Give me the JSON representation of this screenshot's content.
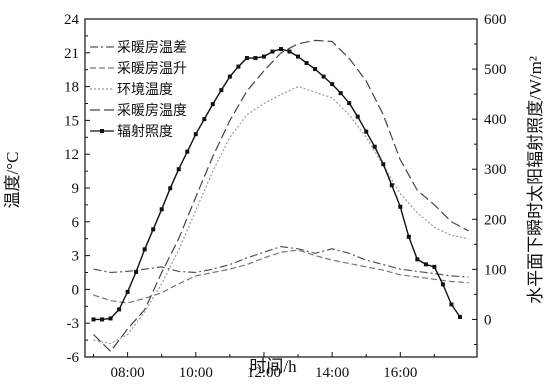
{
  "chart_data": {
    "type": "line",
    "title": "",
    "xlabel": "时间/h",
    "ylabel": "温度/°C",
    "y2label": "水平面下瞬时太阳辐射照度/W/m²",
    "xlim": [
      6.75,
      18.25
    ],
    "ylim": [
      -6,
      24
    ],
    "y2lim": [
      -75,
      600
    ],
    "x_ticks": [
      "08:00",
      "10:00",
      "12:00",
      "14:00",
      "16:00"
    ],
    "x_tick_values": [
      8,
      10,
      12,
      14,
      16
    ],
    "y_ticks": [
      -6,
      -3,
      0,
      3,
      6,
      9,
      12,
      15,
      18,
      21,
      24
    ],
    "y2_ticks": [
      0,
      100,
      200,
      300,
      400,
      500,
      600
    ],
    "grid": false,
    "legend_position": "top-left",
    "series": [
      {
        "name": "采暖房温差",
        "axis": "left",
        "color": "#555555",
        "dash": "8,3,2,3",
        "x": [
          7.0,
          7.5,
          8.0,
          8.5,
          9.0,
          9.5,
          10.0,
          10.5,
          11.0,
          11.5,
          12.0,
          12.5,
          13.0,
          13.5,
          14.0,
          14.5,
          15.0,
          15.5,
          16.0,
          16.5,
          17.0,
          17.5,
          18.0
        ],
        "y": [
          1.8,
          1.5,
          1.6,
          1.8,
          2.0,
          1.6,
          1.5,
          1.8,
          2.2,
          2.8,
          3.3,
          3.8,
          3.6,
          3.2,
          3.6,
          3.2,
          2.6,
          2.2,
          1.8,
          1.6,
          1.4,
          1.2,
          1.1
        ]
      },
      {
        "name": "采暖房温升",
        "axis": "left",
        "color": "#777777",
        "dash": "6,3",
        "x": [
          7.0,
          7.5,
          8.0,
          8.5,
          9.0,
          9.5,
          10.0,
          10.5,
          11.0,
          11.5,
          12.0,
          12.5,
          13.0,
          13.5,
          14.0,
          14.5,
          15.0,
          15.5,
          16.0,
          16.5,
          17.0,
          17.5,
          18.0
        ],
        "y": [
          -0.5,
          -1.0,
          -1.2,
          -0.8,
          -0.3,
          0.5,
          1.2,
          1.5,
          1.8,
          2.2,
          2.8,
          3.3,
          3.5,
          3.0,
          2.6,
          2.3,
          2.0,
          1.7,
          1.3,
          1.1,
          0.9,
          0.7,
          0.6
        ]
      },
      {
        "name": "环境温度",
        "axis": "left",
        "color": "#999999",
        "dash": "2,2",
        "x": [
          7.0,
          7.5,
          8.0,
          8.5,
          9.0,
          9.5,
          10.0,
          10.5,
          11.0,
          11.5,
          12.0,
          12.5,
          13.0,
          13.5,
          14.0,
          14.5,
          15.0,
          15.5,
          16.0,
          16.5,
          17.0,
          17.5,
          18.0
        ],
        "y": [
          -4.5,
          -4.8,
          -4.0,
          -2.0,
          0.5,
          3.5,
          7.0,
          10.5,
          13.5,
          15.5,
          16.5,
          17.3,
          18.0,
          17.5,
          17.0,
          15.5,
          13.5,
          11.0,
          8.5,
          6.8,
          5.5,
          4.8,
          4.5
        ]
      },
      {
        "name": "采暖房温度",
        "axis": "left",
        "color": "#444444",
        "dash": "10,4",
        "x": [
          7.0,
          7.5,
          8.0,
          8.5,
          9.0,
          9.5,
          10.0,
          10.5,
          11.0,
          11.5,
          12.0,
          12.5,
          13.0,
          13.5,
          14.0,
          14.5,
          15.0,
          15.5,
          16.0,
          16.5,
          17.0,
          17.5,
          18.0
        ],
        "y": [
          -4.0,
          -5.5,
          -3.5,
          -1.8,
          1.5,
          4.5,
          8.2,
          11.8,
          15.0,
          17.6,
          19.4,
          21.0,
          21.8,
          22.1,
          22.0,
          20.5,
          18.5,
          15.5,
          11.5,
          8.8,
          7.5,
          6.0,
          5.2
        ]
      },
      {
        "name": "辐射照度",
        "axis": "right",
        "color": "#111111",
        "dash": "",
        "markers": true,
        "x": [
          7.0,
          7.25,
          7.5,
          7.75,
          8.0,
          8.25,
          8.5,
          8.75,
          9.0,
          9.25,
          9.5,
          9.75,
          10.0,
          10.25,
          10.5,
          10.75,
          11.0,
          11.25,
          11.5,
          11.75,
          12.0,
          12.25,
          12.5,
          12.75,
          13.0,
          13.25,
          13.5,
          13.75,
          14.0,
          14.25,
          14.5,
          14.75,
          15.0,
          15.25,
          15.5,
          15.75,
          16.0,
          16.25,
          16.5,
          16.75,
          17.0,
          17.25,
          17.5,
          17.75
        ],
        "y": [
          0,
          0,
          2,
          20,
          55,
          95,
          140,
          180,
          220,
          262,
          300,
          335,
          370,
          400,
          430,
          458,
          485,
          505,
          522,
          522,
          525,
          535,
          540,
          535,
          525,
          512,
          500,
          485,
          470,
          452,
          432,
          405,
          375,
          345,
          310,
          268,
          225,
          165,
          120,
          110,
          105,
          70,
          30,
          5
        ]
      }
    ]
  }
}
